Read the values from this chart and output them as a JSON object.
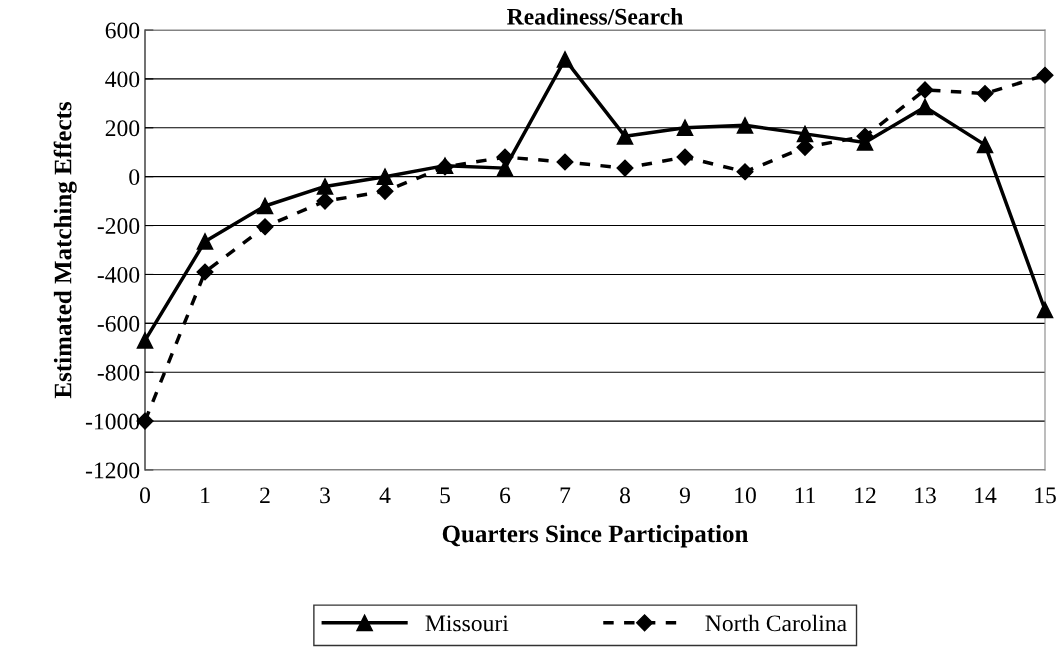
{
  "chart_data": {
    "type": "line",
    "title": "Readiness/Search",
    "xlabel": "Quarters Since Participation",
    "ylabel": "Estimated Matching Effects",
    "x": [
      0,
      1,
      2,
      3,
      4,
      5,
      6,
      7,
      8,
      9,
      10,
      11,
      12,
      13,
      14,
      15
    ],
    "series": [
      {
        "name": "Missouri",
        "color": "#000000",
        "marker": "triangle",
        "line_style": "solid",
        "values": [
          -670,
          -265,
          -120,
          -40,
          0,
          45,
          35,
          480,
          165,
          200,
          210,
          175,
          140,
          285,
          130,
          -545
        ]
      },
      {
        "name": "North Carolina",
        "color": "#000000",
        "marker": "diamond",
        "line_style": "dashed",
        "values": [
          -1000,
          -390,
          -205,
          -100,
          -60,
          40,
          80,
          60,
          35,
          80,
          20,
          120,
          165,
          355,
          340,
          415
        ]
      }
    ],
    "xlim": [
      0,
      15
    ],
    "xticks": [
      0,
      1,
      2,
      3,
      4,
      5,
      6,
      7,
      8,
      9,
      10,
      11,
      12,
      13,
      14,
      15
    ],
    "ylim": [
      -1200,
      600
    ],
    "yticks": [
      -1200,
      -1000,
      -800,
      -600,
      -400,
      -200,
      0,
      200,
      400,
      600
    ],
    "grid": "y",
    "legend": "bottom"
  }
}
